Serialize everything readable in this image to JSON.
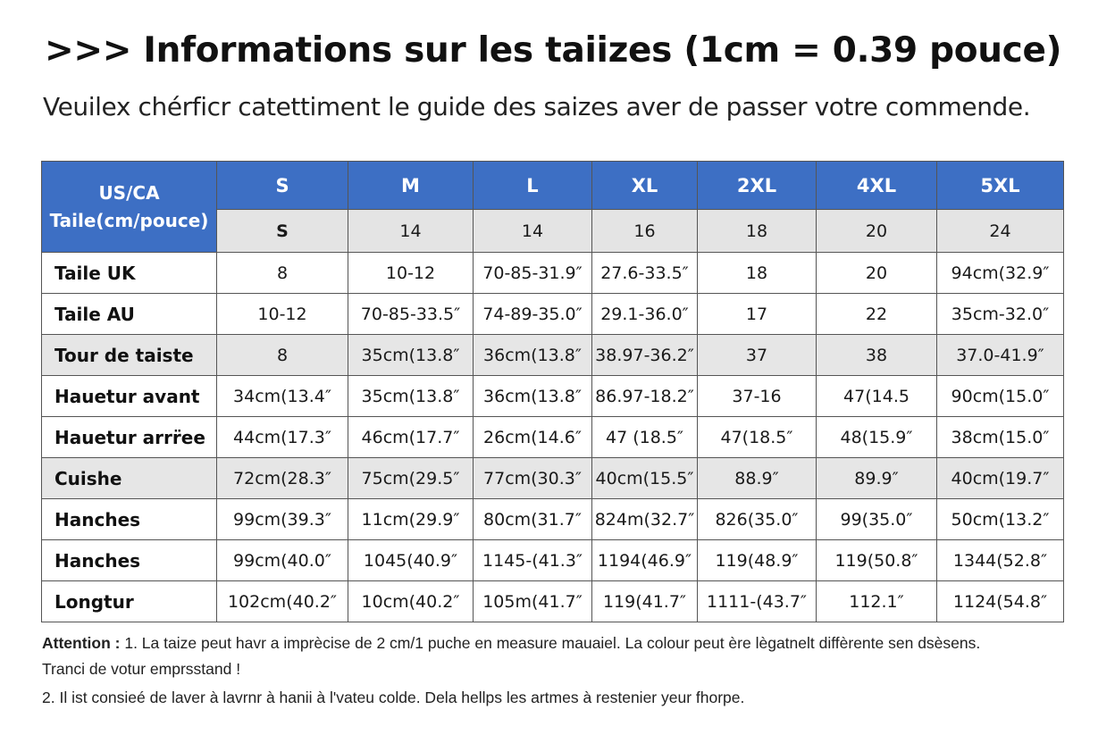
{
  "title": ">>> Informations sur les taiizes (1cm = 0.39 pouce)",
  "subtitle": "Veuilex chérficr catettiment le guide des saizes aver de passer votre commende.",
  "table": {
    "corner_line1": "US/CA",
    "corner_line2": "Taile(cm/pouce)",
    "sizes": [
      "S",
      "M",
      "L",
      "XL",
      "2XL",
      "4XL",
      "5XL"
    ],
    "subheader": [
      "S",
      "14",
      "14",
      "16",
      "18",
      "20",
      "24"
    ],
    "rows": [
      {
        "label": "Taile UK",
        "cells": [
          "8",
          "10-12",
          "70-85-31.9″",
          "27.6-33.5″",
          "18",
          "20",
          "94cm(32.9″"
        ]
      },
      {
        "label": "Taile AU",
        "cells": [
          "10-12",
          "70-85-33.5″",
          "74-89-35.0″",
          "29.1-36.0″",
          "17",
          "22",
          "35cm-32.0″"
        ]
      },
      {
        "label": "Tour de taiste",
        "cells": [
          "8",
          "35cm(13.8″",
          "36cm(13.8″",
          "38.97-36.2″",
          "37",
          "38",
          "37.0-41.9″"
        ]
      },
      {
        "label": "Hauetur avant",
        "cells": [
          "34cm(13.4″",
          "35cm(13.8″",
          "36cm(13.8″",
          "86.97-18.2″",
          "37-16",
          "47(14.5",
          "90cm(15.0″"
        ]
      },
      {
        "label": "Hauetur arrr̈ee",
        "cells": [
          "44cm(17.3″",
          "46cm(17.7″",
          "26cm(14.6″",
          "47  (18.5″",
          "47(18.5″",
          "48(15.9″",
          "38cm(15.0″"
        ]
      },
      {
        "label": "Cuishe",
        "cells": [
          "72cm(28.3″",
          "75cm(29.5″",
          "77cm(30.3″",
          "40cm(15.5″",
          "88.9″",
          "89.9″",
          "40cm(19.7″"
        ]
      },
      {
        "label": "Hanches",
        "cells": [
          "99cm(39.3″",
          "11cm(29.9″",
          "80cm(31.7″",
          "824m(32.7″",
          "826(35.0″",
          "99(35.0″",
          "50cm(13.2″"
        ]
      },
      {
        "label": "Hanches",
        "cells": [
          "99cm(40.0″",
          "1045(40.9″",
          "1145-(41.3″",
          "1194(46.9″",
          "119(48.9″",
          "119(50.8″",
          "1344(52.8″"
        ]
      },
      {
        "label": "Longtur",
        "cells": [
          "102cm(40.2″",
          "10cm(40.2″",
          "105m(41.7″",
          "119(41.7″",
          "1111-(43.7″",
          "112.1″",
          "1124(54.8″"
        ]
      }
    ]
  },
  "notes": {
    "attention_label": "Attention :",
    "line1": " 1. La taize peut havr a imprècise de 2 cm/1 puche en measure mauaiel. La colour peut ère lègatnelt diffèrente sen dsèsens.",
    "line2": "Tranci de votur emprsstand !",
    "line3": "2. Il ist consieé de laver à lavrnr à hanii à l'vateu colde. Dela hellps les artmes à restenier yeur fhorpe."
  }
}
